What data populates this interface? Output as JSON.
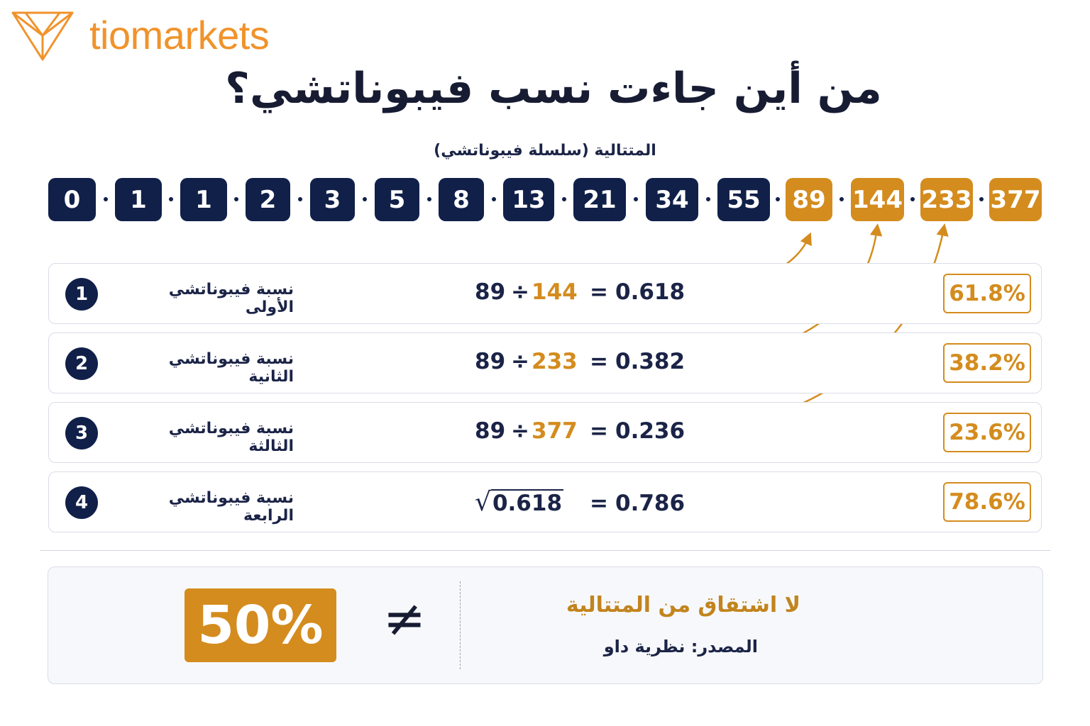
{
  "brand": {
    "name": "tiomarkets",
    "color": "#f0932b",
    "logo_icon": "triangle-logo-icon"
  },
  "title": "من أين جاءت نسب فيبوناتشي؟",
  "sequence": {
    "caption": "المتتالية (سلسلة فيبوناتشي)",
    "numbers": [
      {
        "value": "0",
        "highlight": false
      },
      {
        "value": "1",
        "highlight": false
      },
      {
        "value": "1",
        "highlight": false
      },
      {
        "value": "2",
        "highlight": false
      },
      {
        "value": "3",
        "highlight": false
      },
      {
        "value": "5",
        "highlight": false
      },
      {
        "value": "8",
        "highlight": false
      },
      {
        "value": "13",
        "highlight": false
      },
      {
        "value": "21",
        "highlight": false
      },
      {
        "value": "34",
        "highlight": false
      },
      {
        "value": "55",
        "highlight": false
      },
      {
        "value": "89",
        "highlight": true
      },
      {
        "value": "144",
        "highlight": true
      },
      {
        "value": "233",
        "highlight": true
      },
      {
        "value": "377",
        "highlight": true
      }
    ]
  },
  "ratios": [
    {
      "index": "1",
      "label": "نسبة فيبوناتشي الأولى",
      "a": "89",
      "op": "÷",
      "b": "144",
      "eq": "=",
      "result": "0.618",
      "percent": "61.8%"
    },
    {
      "index": "2",
      "label": "نسبة فيبوناتشي الثانية",
      "a": "89",
      "op": "÷",
      "b": "233",
      "eq": "=",
      "result": "0.382",
      "percent": "38.2%"
    },
    {
      "index": "3",
      "label": "نسبة فيبوناتشي الثالثة",
      "a": "89",
      "op": "÷",
      "b": "377",
      "eq": "=",
      "result": "0.236",
      "percent": "23.6%"
    },
    {
      "index": "4",
      "label": "نسبة فيبوناتشي الرابعة",
      "sqrt_symbol": "√",
      "sqrt_of": "0.618",
      "eq": "=",
      "result": "0.786",
      "percent": "78.6%"
    }
  ],
  "bottom": {
    "value": "50%",
    "neq_symbol": "≠",
    "heading": "لا اشتقاق من المتتالية",
    "source": "المصدر: نظرية داو"
  },
  "colors": {
    "navy": "#102049",
    "gold": "#d48c1e",
    "text": "#1b2447",
    "border": "#d9dde6"
  }
}
